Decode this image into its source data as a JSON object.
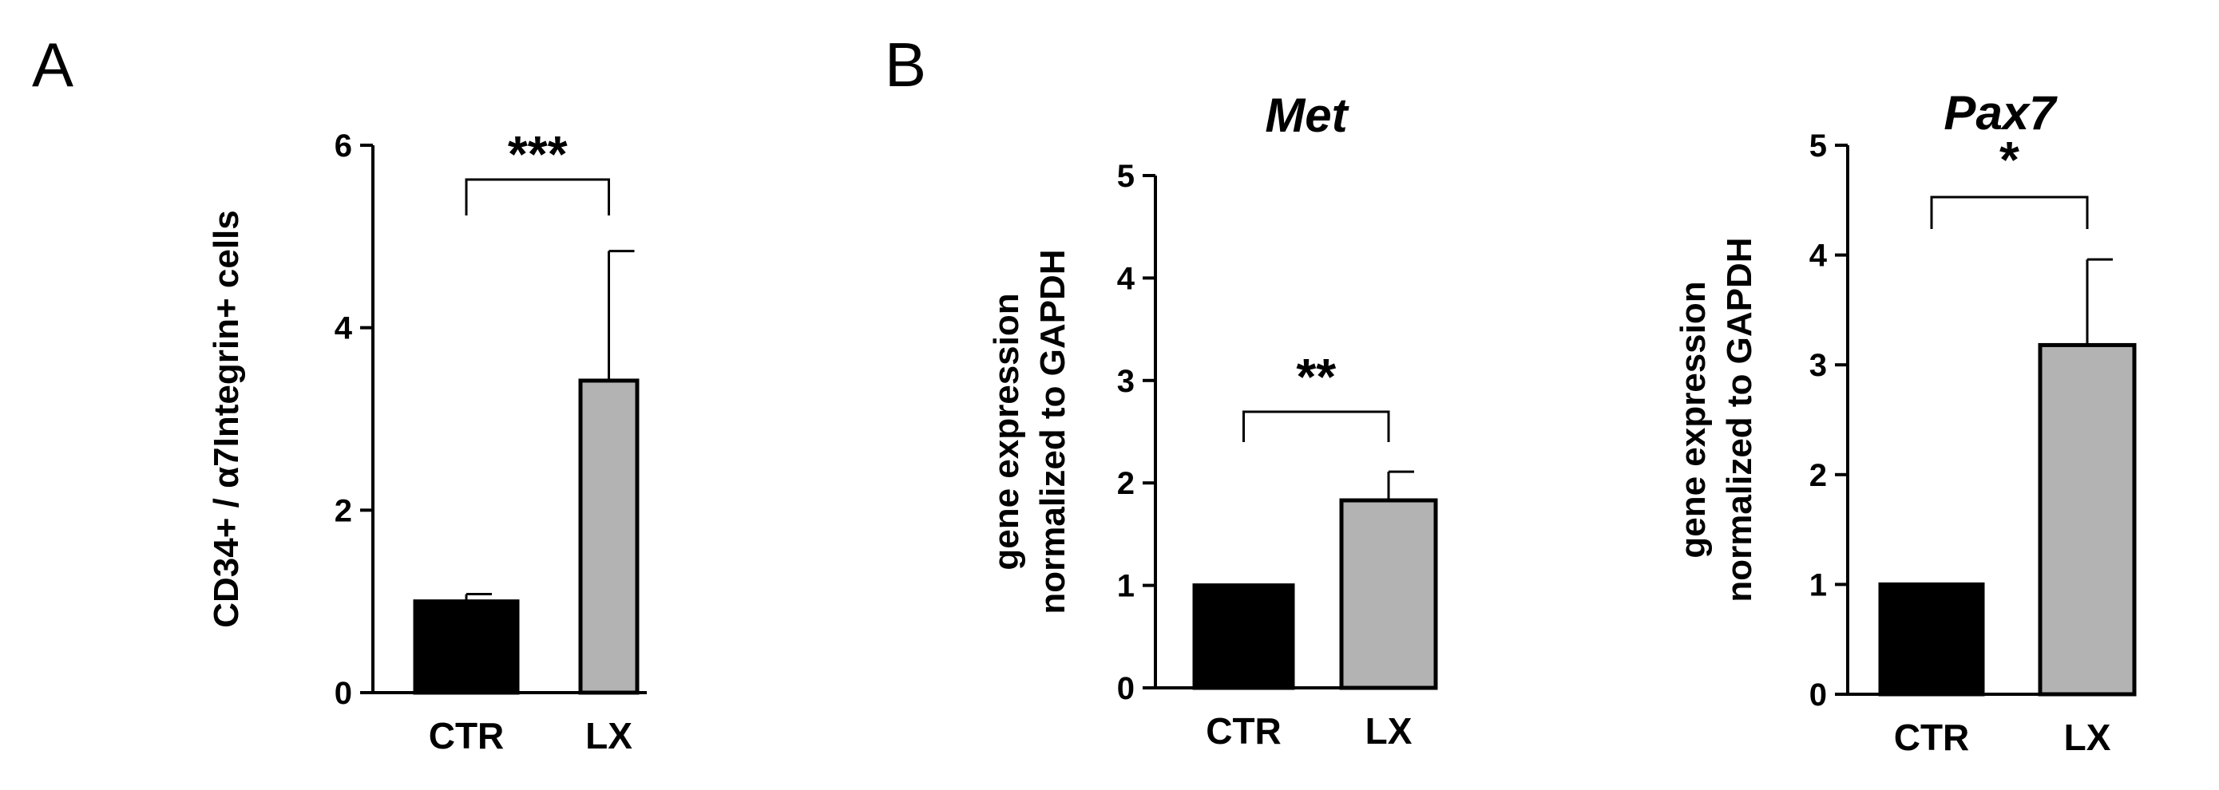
{
  "panels": [
    {
      "letter": "A"
    },
    {
      "letter": "B"
    }
  ],
  "colors": {
    "CTR": "#000000",
    "LX": "#b3b3b3",
    "axis": "#000000",
    "bar_edge": "#000000"
  },
  "chart_data": [
    {
      "type": "bar",
      "panel": "A",
      "title": "",
      "xlabel": "",
      "ylabel": "CD34+ / α7Integrin+ cells",
      "categories": [
        "CTR",
        "LX"
      ],
      "values": [
        1.0,
        3.42
      ],
      "errors": [
        0.08,
        1.42
      ],
      "ylim": [
        0,
        6
      ],
      "yticks": [
        "0",
        "2",
        "4",
        "6"
      ],
      "significance": "***",
      "grid": false
    },
    {
      "type": "bar",
      "panel": "B",
      "title": "Met",
      "xlabel": "",
      "ylabel": [
        "gene expression",
        "normalized to GAPDH"
      ],
      "categories": [
        "CTR",
        "LX"
      ],
      "values": [
        1.0,
        1.83
      ],
      "errors": [
        0.0,
        0.28
      ],
      "ylim": [
        0,
        5
      ],
      "yticks": [
        "0",
        "1",
        "2",
        "3",
        "4",
        "5"
      ],
      "significance": "**",
      "grid": false
    },
    {
      "type": "bar",
      "panel": "",
      "title": "Pax7",
      "xlabel": "",
      "ylabel": [
        "gene expression",
        "normalized to GAPDH"
      ],
      "categories": [
        "CTR",
        "LX"
      ],
      "values": [
        1.0,
        3.18
      ],
      "errors": [
        0.0,
        0.78
      ],
      "ylim": [
        0,
        5
      ],
      "yticks": [
        "0",
        "1",
        "2",
        "3",
        "4",
        "5"
      ],
      "significance": "*",
      "grid": false
    }
  ]
}
